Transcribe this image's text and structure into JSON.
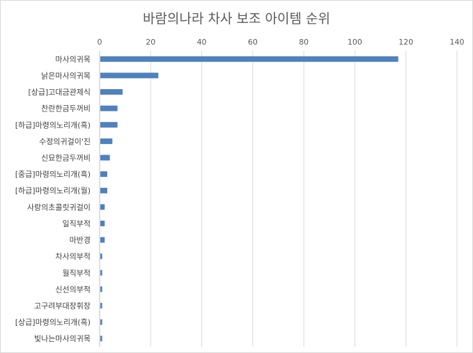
{
  "chart_data": {
    "type": "bar",
    "orientation": "horizontal",
    "title": "바람의나라 차사 보조 아이템 순위",
    "xlim": [
      0,
      140
    ],
    "x_ticks": [
      0,
      20,
      40,
      60,
      80,
      100,
      120,
      140
    ],
    "x_tick_labels": [
      "0",
      "20",
      "40",
      "60",
      "80",
      "100",
      "120",
      "140"
    ],
    "x_axis_position": "top",
    "grid": true,
    "bar_color": "#4F81BD",
    "categories": [
      "마사의귀목",
      "낡은마사의귀목",
      "[상급]고대금관제식",
      "찬란한금두꺼비",
      "[하급]마령의노리개(흑)",
      "수정의귀걸이'진",
      "신묘한금두꺼비",
      "[중급]마령의노리개(흑)",
      "[하급]마령의노리개(월)",
      "사랑의초콜릿귀걸이",
      "일직부적",
      "마반경",
      "차사의부적",
      "월직부적",
      "신선의부적",
      "고구려부대장휘장",
      "[상급]마령의노리개(흑)",
      "빛나는마사의귀목"
    ],
    "values": [
      117,
      23,
      9,
      7,
      7,
      5,
      4,
      3,
      3,
      2,
      2,
      2,
      1,
      1,
      1,
      1,
      1,
      1
    ]
  }
}
